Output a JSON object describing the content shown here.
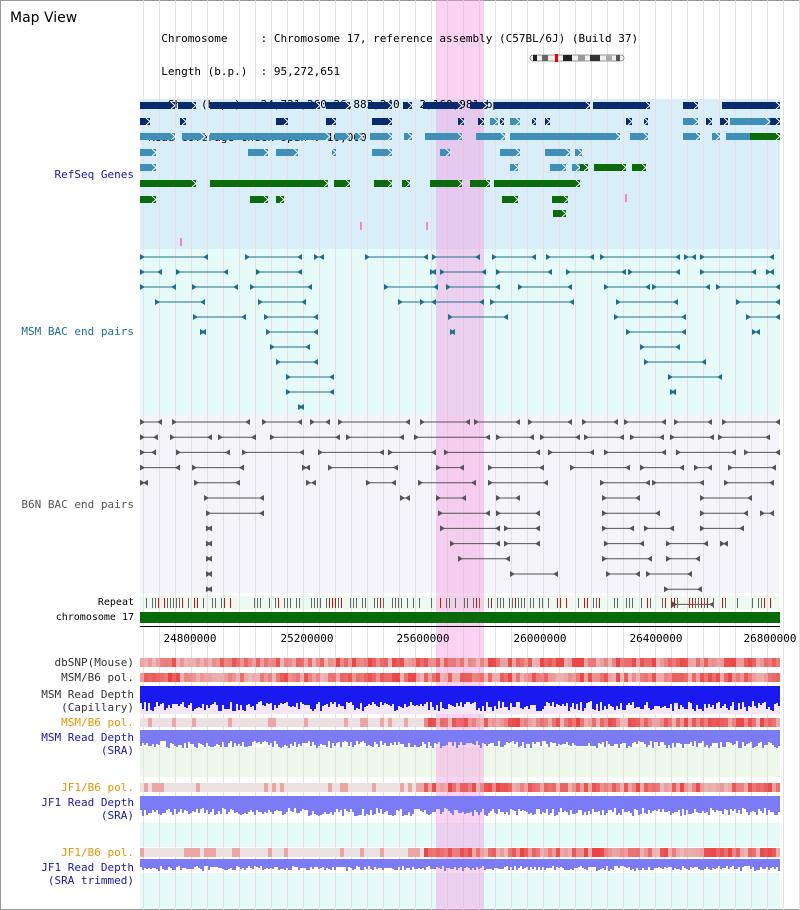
{
  "page": {
    "title": "Map View"
  },
  "info": {
    "chromosome_label": "Chromosome",
    "chromosome_value": "Chromosome 17, reference assembly (C57BL/6J) (Build 37)",
    "length_label": "Length (b.p.)",
    "length_value": "95,272,651",
    "show_label": "Show (b.p.)",
    "show_value": "24,721,260-26,882,240 : 2,160,981 bp",
    "coverage_label": "Read coverage check span",
    "coverage_value": "10,000"
  },
  "tracks": {
    "refseq": "RefSeq Genes",
    "msm_bac": "MSM BAC end pairs",
    "b6n_bac": "B6N BAC end pairs",
    "repeat": "Repeat",
    "chromosome": "chromosome 17",
    "dbsnp": "dbSNP(Mouse)",
    "msm_b6_pol_1": "MSM/B6 pol.",
    "msm_read_depth_cap_1": "MSM Read Depth",
    "msm_read_depth_cap_2": "(Capillary)",
    "msm_b6_pol_2": "MSM/B6 pol.",
    "msm_read_depth_sra_1": "MSM Read Depth",
    "msm_read_depth_sra_2": "(SRA)",
    "jf1_b6_pol_1": "JF1/B6 pol.",
    "jf1_read_depth_sra_1": "JF1 Read Depth",
    "jf1_read_depth_sra_2": "(SRA)",
    "jf1_b6_pol_2": "JF1/B6 pol.",
    "jf1_read_depth_trim_1": "JF1 Read Depth",
    "jf1_read_depth_trim_2": "(SRA trimmed)"
  },
  "axis": {
    "ticks": [
      "24800000",
      "25200000",
      "25600000",
      "26000000",
      "26400000",
      "26800000"
    ]
  },
  "colors": {
    "refseq_dark": "#0a2a6e",
    "refseq_mid": "#3f8fb8",
    "refseq_green": "#0b6b0b",
    "msm_bac": "#1f6f8f",
    "b6n_bac": "#555555",
    "highlight": "#f5a0e6",
    "chromosome_bar": "#0b6b0b",
    "depth_blue": "#1a1af0",
    "depth_light": "#7b7bf5"
  }
}
